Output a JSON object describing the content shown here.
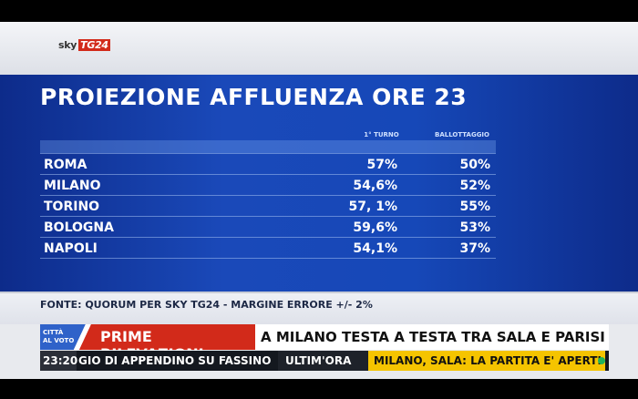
{
  "logo": {
    "sky": "sky",
    "tg": "TG24"
  },
  "title": "PROIEZIONE AFFLUENZA ORE 23",
  "columns": {
    "c1": "1° TURNO",
    "c2": "BALLOTTAGGIO"
  },
  "rows": [
    {
      "city": "ROMA",
      "v1": "57%",
      "v2": "50%"
    },
    {
      "city": "MILANO",
      "v1": "54,6%",
      "v2": "52%"
    },
    {
      "city": "TORINO",
      "v1": "57, 1%",
      "v2": "55%"
    },
    {
      "city": "BOLOGNA",
      "v1": "59,6%",
      "v2": "53%"
    },
    {
      "city": "NAPOLI",
      "v1": "54,1%",
      "v2": "37%"
    }
  ],
  "source": "FONTE: QUORUM PER SKY TG24 - MARGINE ERRORE +/- 2%",
  "ticker": {
    "badge_l1": "CITTÀ",
    "badge_l2": "AL VOTO",
    "label": "PRIME RILEVAZIONI",
    "headline": "A MILANO TESTA A TESTA TRA SALA E PARISI"
  },
  "crawl": {
    "time": "23:20",
    "text1": "GIO DI APPENDINO SU FASSINO",
    "ultimora": "ULTIM'ORA",
    "text2": "MILANO, SALA: LA PARTITA E' APERTI"
  }
}
